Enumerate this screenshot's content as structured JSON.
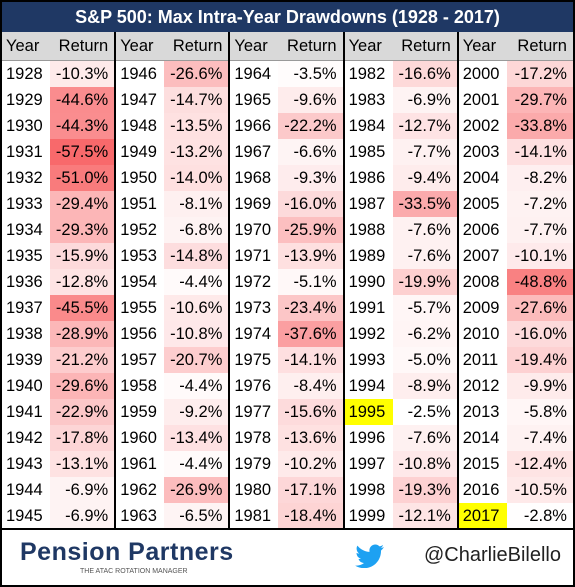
{
  "title": "S&P 500: Max Intra-Year Drawdowns (1928 - 2017)",
  "table": {
    "heat_color": "#f8696b",
    "highlight_color": "#ffff00",
    "highlighted_years": [
      "1995",
      "2017"
    ],
    "columns": [
      {
        "header": [
          "Year",
          "Return"
        ],
        "rows": [
          [
            "1928",
            "-10.3%"
          ],
          [
            "1929",
            "-44.6%"
          ],
          [
            "1930",
            "-44.3%"
          ],
          [
            "1931",
            "-57.5%"
          ],
          [
            "1932",
            "-51.0%"
          ],
          [
            "1933",
            "-29.4%"
          ],
          [
            "1934",
            "-29.3%"
          ],
          [
            "1935",
            "-15.9%"
          ],
          [
            "1936",
            "-12.8%"
          ],
          [
            "1937",
            "-45.5%"
          ],
          [
            "1938",
            "-28.9%"
          ],
          [
            "1939",
            "-21.2%"
          ],
          [
            "1940",
            "-29.6%"
          ],
          [
            "1941",
            "-22.9%"
          ],
          [
            "1942",
            "-17.8%"
          ],
          [
            "1943",
            "-13.1%"
          ],
          [
            "1944",
            "-6.9%"
          ],
          [
            "1945",
            "-6.9%"
          ]
        ]
      },
      {
        "header": [
          "Year",
          "Return"
        ],
        "rows": [
          [
            "1946",
            "-26.6%"
          ],
          [
            "1947",
            "-14.7%"
          ],
          [
            "1948",
            "-13.5%"
          ],
          [
            "1949",
            "-13.2%"
          ],
          [
            "1950",
            "-14.0%"
          ],
          [
            "1951",
            "-8.1%"
          ],
          [
            "1952",
            "-6.8%"
          ],
          [
            "1953",
            "-14.8%"
          ],
          [
            "1954",
            "-4.4%"
          ],
          [
            "1955",
            "-10.6%"
          ],
          [
            "1956",
            "-10.8%"
          ],
          [
            "1957",
            "-20.7%"
          ],
          [
            "1958",
            "-4.4%"
          ],
          [
            "1959",
            "-9.2%"
          ],
          [
            "1960",
            "-13.4%"
          ],
          [
            "1961",
            "-4.4%"
          ],
          [
            "1962",
            "-26.9%"
          ],
          [
            "1963",
            "-6.5%"
          ]
        ]
      },
      {
        "header": [
          "Year",
          "Return"
        ],
        "rows": [
          [
            "1964",
            "-3.5%"
          ],
          [
            "1965",
            "-9.6%"
          ],
          [
            "1966",
            "-22.2%"
          ],
          [
            "1967",
            "-6.6%"
          ],
          [
            "1968",
            "-9.3%"
          ],
          [
            "1969",
            "-16.0%"
          ],
          [
            "1970",
            "-25.9%"
          ],
          [
            "1971",
            "-13.9%"
          ],
          [
            "1972",
            "-5.1%"
          ],
          [
            "1973",
            "-23.4%"
          ],
          [
            "1974",
            "-37.6%"
          ],
          [
            "1975",
            "-14.1%"
          ],
          [
            "1976",
            "-8.4%"
          ],
          [
            "1977",
            "-15.6%"
          ],
          [
            "1978",
            "-13.6%"
          ],
          [
            "1979",
            "-10.2%"
          ],
          [
            "1980",
            "-17.1%"
          ],
          [
            "1981",
            "-18.4%"
          ]
        ]
      },
      {
        "header": [
          "Year",
          "Return"
        ],
        "rows": [
          [
            "1982",
            "-16.6%"
          ],
          [
            "1983",
            "-6.9%"
          ],
          [
            "1984",
            "-12.7%"
          ],
          [
            "1985",
            "-7.7%"
          ],
          [
            "1986",
            "-9.4%"
          ],
          [
            "1987",
            "-33.5%"
          ],
          [
            "1988",
            "-7.6%"
          ],
          [
            "1989",
            "-7.6%"
          ],
          [
            "1990",
            "-19.9%"
          ],
          [
            "1991",
            "-5.7%"
          ],
          [
            "1992",
            "-6.2%"
          ],
          [
            "1993",
            "-5.0%"
          ],
          [
            "1994",
            "-8.9%"
          ],
          [
            "1995",
            "-2.5%"
          ],
          [
            "1996",
            "-7.6%"
          ],
          [
            "1997",
            "-10.8%"
          ],
          [
            "1998",
            "-19.3%"
          ],
          [
            "1999",
            "-12.1%"
          ]
        ]
      },
      {
        "header": [
          "Year",
          "Return"
        ],
        "rows": [
          [
            "2000",
            "-17.2%"
          ],
          [
            "2001",
            "-29.7%"
          ],
          [
            "2002",
            "-33.8%"
          ],
          [
            "2003",
            "-14.1%"
          ],
          [
            "2004",
            "-8.2%"
          ],
          [
            "2005",
            "-7.2%"
          ],
          [
            "2006",
            "-7.7%"
          ],
          [
            "2007",
            "-10.1%"
          ],
          [
            "2008",
            "-48.8%"
          ],
          [
            "2009",
            "-27.6%"
          ],
          [
            "2010",
            "-16.0%"
          ],
          [
            "2011",
            "-19.4%"
          ],
          [
            "2012",
            "-9.9%"
          ],
          [
            "2013",
            "-5.8%"
          ],
          [
            "2014",
            "-7.4%"
          ],
          [
            "2015",
            "-12.4%"
          ],
          [
            "2016",
            "-10.5%"
          ],
          [
            "2017",
            "-2.8%"
          ]
        ]
      }
    ]
  },
  "footer": {
    "brand": "Pension Partners",
    "tagline": "THE ATAC ROTATION MANAGER",
    "handle": "@CharlieBilello"
  }
}
